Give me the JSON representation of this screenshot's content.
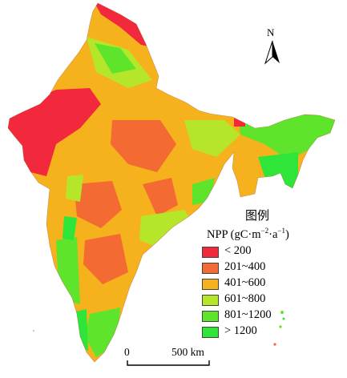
{
  "north_arrow": {
    "letter": "N"
  },
  "legend": {
    "title": "图例",
    "subtitle_main": "NPP (gC·m",
    "subtitle_exp1": "−2",
    "subtitle_mid": "·a",
    "subtitle_exp2": "−1",
    "subtitle_end": ")",
    "items": [
      {
        "label": "< 200",
        "color": "#f2283c"
      },
      {
        "label": "201~400",
        "color": "#f36a32"
      },
      {
        "label": "401~600",
        "color": "#f5b21c"
      },
      {
        "label": "601~800",
        "color": "#b6e62a"
      },
      {
        "label": "801~1200",
        "color": "#5fe42c"
      },
      {
        "label": "> 1200",
        "color": "#30e53a"
      }
    ]
  },
  "scale_bar": {
    "zero": "0",
    "end": "500 km"
  }
}
